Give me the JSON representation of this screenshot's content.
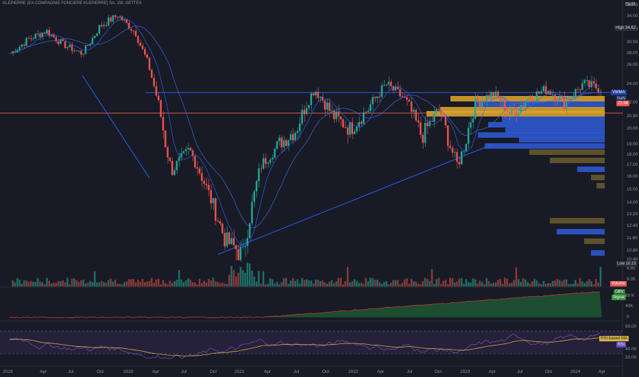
{
  "title": "KLEPIERRE (EX-COMPAGNIE FONCIERE KLEPIERRE) SA, 1W, GETTEX",
  "currency": "EUR",
  "price_axis": [
    {
      "v": 36.0,
      "t": "36.00"
    },
    {
      "v": 34.0,
      "t": "34.00"
    },
    {
      "v": 32.0,
      "t": "32.00"
    },
    {
      "v": 30.0,
      "t": "30.00"
    },
    {
      "v": 28.0,
      "t": "28.00"
    },
    {
      "v": 26.0,
      "t": "26.00"
    },
    {
      "v": 24.0,
      "t": "24.00"
    },
    {
      "v": 22.0,
      "t": "22.00"
    },
    {
      "v": 20.9,
      "t": "20.90"
    },
    {
      "v": 20.0,
      "t": "20.00"
    },
    {
      "v": 19.0,
      "t": "19.00"
    },
    {
      "v": 18.0,
      "t": "18.00"
    },
    {
      "v": 17.0,
      "t": "17.00"
    },
    {
      "v": 16.0,
      "t": "16.00"
    },
    {
      "v": 15.0,
      "t": "15.00"
    },
    {
      "v": 14.0,
      "t": "14.00"
    },
    {
      "v": 13.2,
      "t": "13.20"
    },
    {
      "v": 12.4,
      "t": "12.40"
    },
    {
      "v": 11.6,
      "t": "11.60"
    },
    {
      "v": 10.8,
      "t": "10.80"
    },
    {
      "v": 10.4,
      "t": "10.40"
    },
    {
      "v": 9.85,
      "t": "9.85"
    },
    {
      "v": 9.35,
      "t": "9.35"
    }
  ],
  "obv_axis": [
    "80 K",
    "40K",
    "0"
  ],
  "rsi_axis": [
    "60.00",
    "40.00",
    "20.00"
  ],
  "time_axis": [
    "2019",
    "Apr",
    "Jul",
    "Oct",
    "2020",
    "Apr",
    "Jul",
    "Oct",
    "2021",
    "Apr",
    "Jul",
    "Oct",
    "2022",
    "Apr",
    "Jul",
    "Oct",
    "2023",
    "Apr",
    "Jul",
    "Oct",
    "2024",
    "Apr"
  ],
  "labels": {
    "high": "High",
    "high_value": "34.62",
    "vwma": "VWMA",
    "na": "NaN",
    "last_price": "23.56",
    "low": "Low",
    "low_value": "10.15",
    "volume": "Volume",
    "obv": "OBV",
    "signal": "Signal",
    "rsi_ma": "RSI-based MA",
    "rsi": "RSI"
  },
  "colors": {
    "up": "#26a69a",
    "down": "#ef5350",
    "vwma": "#2962ff",
    "volume_profile_up": "#e0a82e",
    "volume_profile_down": "#2f5bd8"
  },
  "chart_data": {
    "type": "candlestick",
    "symbol": "KLEPIERRE (EX-COMPAGNIE FONCIERE KLEPIERRE) SA",
    "interval": "1W",
    "exchange": "GETTEX",
    "close_path": [
      [
        "2019-01",
        28.0
      ],
      [
        "2019-03",
        30.5
      ],
      [
        "2019-05",
        31.8
      ],
      [
        "2019-07",
        29.5
      ],
      [
        "2019-08",
        28.0
      ],
      [
        "2019-10",
        32.5
      ],
      [
        "2019-12",
        34.2
      ],
      [
        "2020-01",
        31.5
      ],
      [
        "2020-02",
        24.0
      ],
      [
        "2020-03",
        16.5
      ],
      [
        "2020-05",
        18.5
      ],
      [
        "2020-07",
        15.0
      ],
      [
        "2020-09",
        11.5
      ],
      [
        "2020-10",
        10.6
      ],
      [
        "2020-11",
        17.0
      ],
      [
        "2021-01",
        19.0
      ],
      [
        "2021-03",
        20.0
      ],
      [
        "2021-05",
        23.5
      ],
      [
        "2021-07",
        21.0
      ],
      [
        "2021-09",
        20.0
      ],
      [
        "2021-11",
        21.5
      ],
      [
        "2022-01",
        24.0
      ],
      [
        "2022-03",
        22.5
      ],
      [
        "2022-06",
        19.5
      ],
      [
        "2022-08",
        21.5
      ],
      [
        "2022-10",
        17.0
      ],
      [
        "2022-12",
        22.0
      ],
      [
        "2023-02",
        23.0
      ],
      [
        "2023-04",
        21.0
      ],
      [
        "2023-06",
        22.5
      ],
      [
        "2023-08",
        23.5
      ],
      [
        "2023-10",
        22.0
      ],
      [
        "2023-12",
        24.0
      ],
      [
        "2024-02",
        23.56
      ]
    ],
    "high": 34.62,
    "low": 10.15,
    "last": 23.56
  }
}
